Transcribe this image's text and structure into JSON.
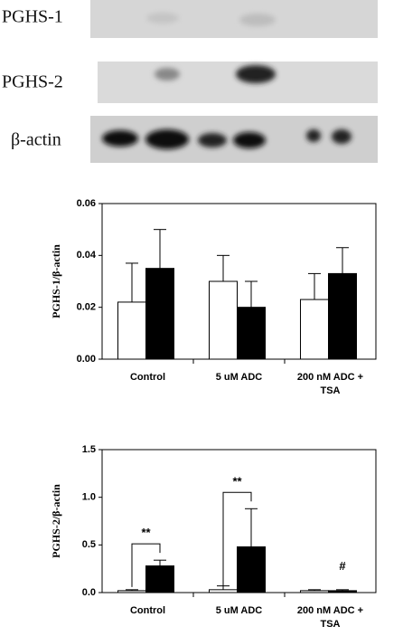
{
  "blot": {
    "labels": [
      "PGHS-1",
      "PGHS-2",
      "β-actin"
    ]
  },
  "chart_data": [
    {
      "type": "bar",
      "ylabel": "PGHS-1/β-actin",
      "categories": [
        "Control",
        "5 uM ADC",
        "200 nM ADC + TSA"
      ],
      "series": [
        {
          "color": "#ffffff",
          "values": [
            0.022,
            0.03,
            0.023
          ],
          "errors": [
            0.015,
            0.01,
            0.01
          ]
        },
        {
          "color": "#000000",
          "values": [
            0.035,
            0.02,
            0.033
          ],
          "errors": [
            0.015,
            0.01,
            0.01
          ]
        }
      ],
      "ylim": [
        0,
        0.06
      ],
      "yticks": [
        {
          "value": 0,
          "label": "0.00"
        },
        {
          "value": 0.02,
          "label": "0.02"
        },
        {
          "value": 0.04,
          "label": "0.04"
        },
        {
          "value": 0.06,
          "label": "0.06"
        }
      ]
    },
    {
      "type": "bar",
      "ylabel": "PGHS-2/β-actin",
      "categories": [
        "Control",
        "5 uM ADC",
        "200 nM ADC + TSA"
      ],
      "series": [
        {
          "color": "#ffffff",
          "values": [
            0.02,
            0.03,
            0.02
          ],
          "errors": [
            0.01,
            0.04,
            0.01
          ]
        },
        {
          "color": "#000000",
          "values": [
            0.28,
            0.48,
            0.02
          ],
          "errors": [
            0.06,
            0.4,
            0.01
          ]
        }
      ],
      "annotations": [
        "**",
        "**",
        "#"
      ],
      "ylim": [
        0,
        1.5
      ],
      "yticks": [
        {
          "value": 0,
          "label": "0.0"
        },
        {
          "value": 0.5,
          "label": "0.5"
        },
        {
          "value": 1.0,
          "label": "1.0"
        },
        {
          "value": 1.5,
          "label": "1.5"
        }
      ]
    }
  ]
}
